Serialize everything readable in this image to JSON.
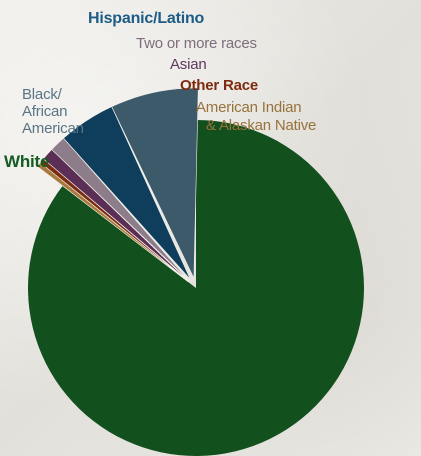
{
  "chart_data": {
    "type": "pie",
    "title": "",
    "style": "exploded minor slices",
    "slices": [
      {
        "label": "White",
        "value": 85.4,
        "color": "#12501e"
      },
      {
        "label": "American Indian & Alaskan Native",
        "value": 0.3,
        "color": "#a87a3e"
      },
      {
        "label": "Other Race",
        "value": 0.3,
        "color": "#7a2d12"
      },
      {
        "label": "Asian",
        "value": 1.0,
        "color": "#5a2e55"
      },
      {
        "label": "Two or more races",
        "value": 1.3,
        "color": "#8d7d8a"
      },
      {
        "label": "Hispanic/Latino",
        "value": 4.6,
        "color": "#0e3e5c"
      },
      {
        "label": "Black/ African American",
        "value": 7.1,
        "color": "#3d5a6a"
      }
    ],
    "labels": {
      "white": "White",
      "black_line1": "Black/",
      "black_line2": "African",
      "black_line3": "American",
      "hispanic": "Hispanic/Latino",
      "two_or_more": "Two or more races",
      "asian": "Asian",
      "other": "Other Race",
      "native_line1": "American Indian",
      "native_line2": "& Alaskan Native"
    },
    "label_colors": {
      "white": "#145c22",
      "black": "#5a7585",
      "hispanic": "#1c5c86",
      "two_or_more": "#7f6c7c",
      "asian": "#5e3a5c",
      "other": "#7d2a0f",
      "native": "#98723c"
    }
  }
}
